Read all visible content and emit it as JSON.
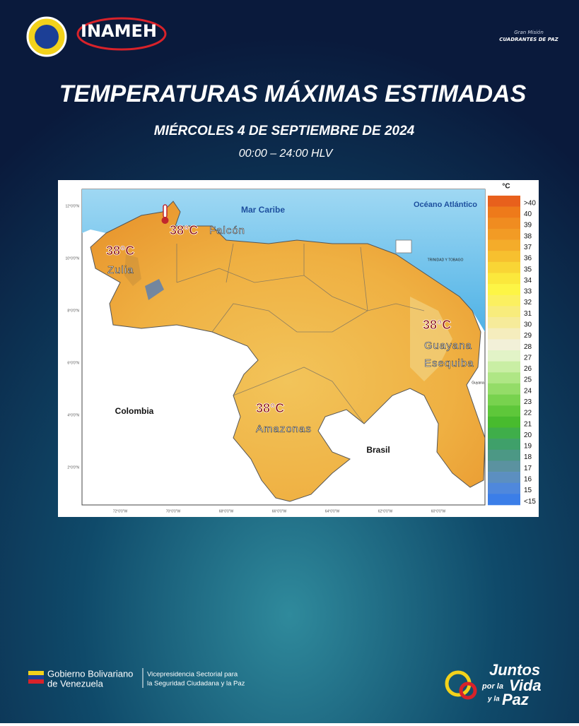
{
  "header": {
    "org": "INAMEH",
    "partner_line1": "Gran Misión",
    "partner_line2": "CUADRANTES DE PAZ"
  },
  "title": "TEMPERATURAS MÁXIMAS ESTIMADAS",
  "date": "MIÉRCOLES 4  DE SEPTIEMBRE DE 2024",
  "time": "00:00 – 24:00 HLV",
  "map": {
    "places": [
      "Mar Caribe",
      "Océano Atlántico",
      "Colombia",
      "Brasil",
      "TRINIDAD Y TOBAGO",
      "Guyana"
    ],
    "latitudes": [
      "12°0'0\"N",
      "10°0'0\"N",
      "8°0'0\"N",
      "6°0'0\"N",
      "4°0'0\"N",
      "2°0'0\"N"
    ],
    "longitudes": [
      "72°0'0\"W",
      "70°0'0\"W",
      "68°0'0\"W",
      "66°0'0\"W",
      "64°0'0\"W",
      "62°0'0\"W",
      "60°0'0\"W"
    ],
    "annotations": [
      {
        "temp": "38°C",
        "region": [
          "Falcón"
        ]
      },
      {
        "temp": "38°C",
        "region": [
          "Zulia"
        ]
      },
      {
        "temp": "38°C",
        "region": [
          "Guayana",
          "Esequiba"
        ]
      },
      {
        "temp": "38°C",
        "region": [
          "Amazonas"
        ]
      }
    ],
    "legend": {
      "unit": "°C",
      "entries": [
        {
          "label": ">40",
          "color": "#e8601c"
        },
        {
          "label": "40",
          "color": "#ee7a1a"
        },
        {
          "label": "39",
          "color": "#f08c20"
        },
        {
          "label": "38",
          "color": "#f29b25"
        },
        {
          "label": "37",
          "color": "#f4ac2a"
        },
        {
          "label": "36",
          "color": "#f7c02f"
        },
        {
          "label": "35",
          "color": "#f9d535"
        },
        {
          "label": "34",
          "color": "#fbe83c"
        },
        {
          "label": "33",
          "color": "#fdf545"
        },
        {
          "label": "32",
          "color": "#fbf060"
        },
        {
          "label": "31",
          "color": "#f8ec7c"
        },
        {
          "label": "30",
          "color": "#f6eb9a"
        },
        {
          "label": "29",
          "color": "#f5edbd"
        },
        {
          "label": "28",
          "color": "#f2f0d8"
        },
        {
          "label": "27",
          "color": "#e2f3c7"
        },
        {
          "label": "26",
          "color": "#c9eea4"
        },
        {
          "label": "25",
          "color": "#afe685"
        },
        {
          "label": "24",
          "color": "#94dc68"
        },
        {
          "label": "23",
          "color": "#78d24e"
        },
        {
          "label": "22",
          "color": "#5ec73a"
        },
        {
          "label": "21",
          "color": "#48bb2e"
        },
        {
          "label": "20",
          "color": "#3fae4a"
        },
        {
          "label": "19",
          "color": "#3fa06a"
        },
        {
          "label": "18",
          "color": "#4c9885"
        },
        {
          "label": "17",
          "color": "#5b92a0"
        },
        {
          "label": "16",
          "color": "#5c8fc0"
        },
        {
          "label": "15",
          "color": "#4f88dc"
        },
        {
          "label": "<15",
          "color": "#3b7ee8"
        }
      ]
    }
  },
  "footer": {
    "gov_line1": "Gobierno Bolivariano",
    "gov_line2": "de Venezuela",
    "vp_line1": "Vicepresidencia Sectorial para",
    "vp_line2": "la Seguridad Ciudadana y la Paz",
    "slogan": [
      "Juntos",
      "por la",
      "Vida",
      "y la",
      "Paz"
    ]
  }
}
